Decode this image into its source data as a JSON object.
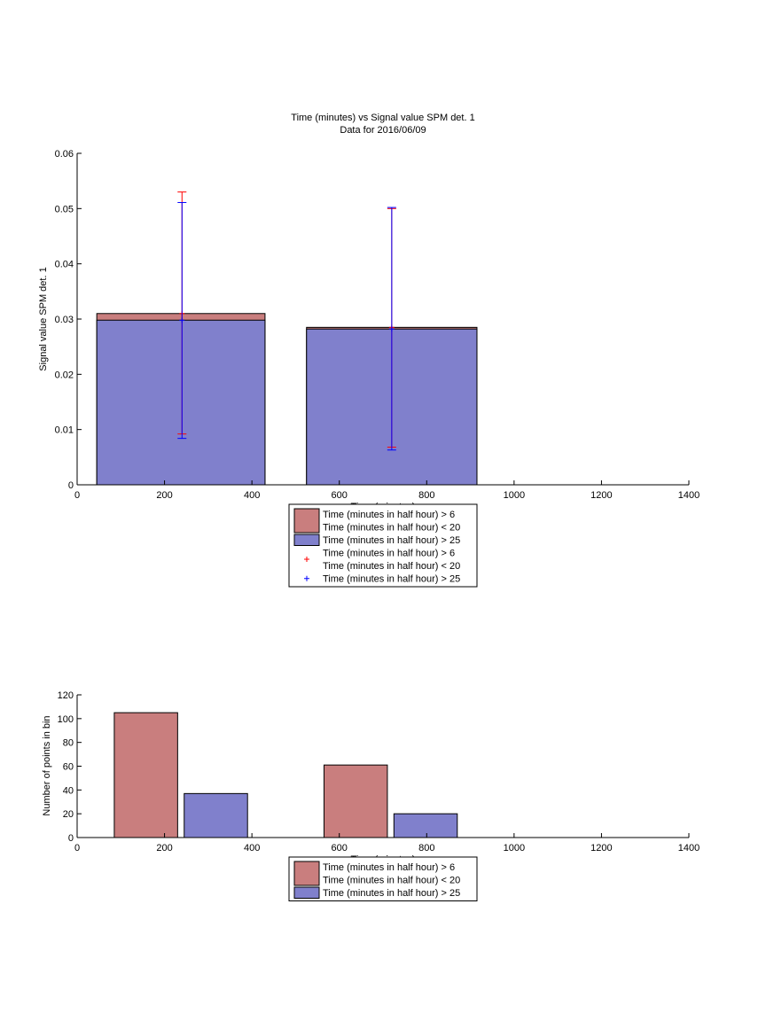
{
  "chart_data": [
    {
      "type": "bar",
      "title": "Time (minutes) vs Signal value SPM det. 1",
      "subtitle": "Data for 2016/06/09",
      "xlabel": "Time (minutes)",
      "ylabel": "Signal value SPM det. 1",
      "xlim": [
        0,
        1400
      ],
      "ylim": [
        0,
        0.06
      ],
      "xticks": [
        "0",
        "200",
        "400",
        "600",
        "800",
        "1000",
        "1200",
        "1400"
      ],
      "yticks": [
        "0",
        "0.01",
        "0.02",
        "0.03",
        "0.04",
        "0.05",
        "0.06"
      ],
      "grid": false,
      "legend_position": "bottom-center",
      "series": [
        {
          "name": "Time (minutes in half hour) > 6\nTime (minutes in half hour) < 20",
          "color": "#c97e7e",
          "kind": "bar",
          "x": [
            240,
            720
          ],
          "values": [
            0.031,
            0.0285
          ],
          "bar_range": [
            [
              45,
              430
            ],
            [
              525,
              915
            ]
          ]
        },
        {
          "name": "Time (minutes in half hour) > 25",
          "color": "#8080cc",
          "kind": "bar",
          "x": [
            240,
            720
          ],
          "values": [
            0.0298,
            0.0282
          ],
          "bar_range": [
            [
              45,
              430
            ],
            [
              525,
              915
            ]
          ]
        },
        {
          "name": "Time (minutes in half hour) > 6\nTime (minutes in half hour) < 20",
          "color": "#ff0000",
          "kind": "errorbar",
          "x": [
            240,
            720
          ],
          "values": [
            0.031,
            0.0285
          ],
          "upper": [
            0.053,
            0.05
          ],
          "lower": [
            0.0092,
            0.0068
          ]
        },
        {
          "name": "Time (minutes in half hour) > 25",
          "color": "#0000ff",
          "kind": "errorbar",
          "x": [
            240,
            720
          ],
          "values": [
            0.0298,
            0.0282
          ],
          "upper": [
            0.0511,
            0.0502
          ],
          "lower": [
            0.0084,
            0.0063
          ]
        }
      ]
    },
    {
      "type": "bar",
      "xlabel": "Time (minutes)",
      "ylabel": "Number of points in bin",
      "xlim": [
        0,
        1400
      ],
      "ylim": [
        0,
        120
      ],
      "xticks": [
        "0",
        "200",
        "400",
        "600",
        "800",
        "1000",
        "1200",
        "1400"
      ],
      "yticks": [
        "0",
        "20",
        "40",
        "60",
        "80",
        "100",
        "120"
      ],
      "grid": false,
      "legend_position": "bottom-center",
      "series": [
        {
          "name": "Time (minutes in half hour) > 6\nTime (minutes in half hour) < 20",
          "color": "#c97e7e",
          "kind": "bar",
          "values": [
            105,
            61
          ],
          "bar_range": [
            [
              85,
              230
            ],
            [
              565,
              710
            ]
          ]
        },
        {
          "name": "Time (minutes in half hour) > 25",
          "color": "#8080cc",
          "kind": "bar",
          "values": [
            37,
            20
          ],
          "bar_range": [
            [
              245,
              390
            ],
            [
              725,
              870
            ]
          ]
        }
      ]
    }
  ]
}
